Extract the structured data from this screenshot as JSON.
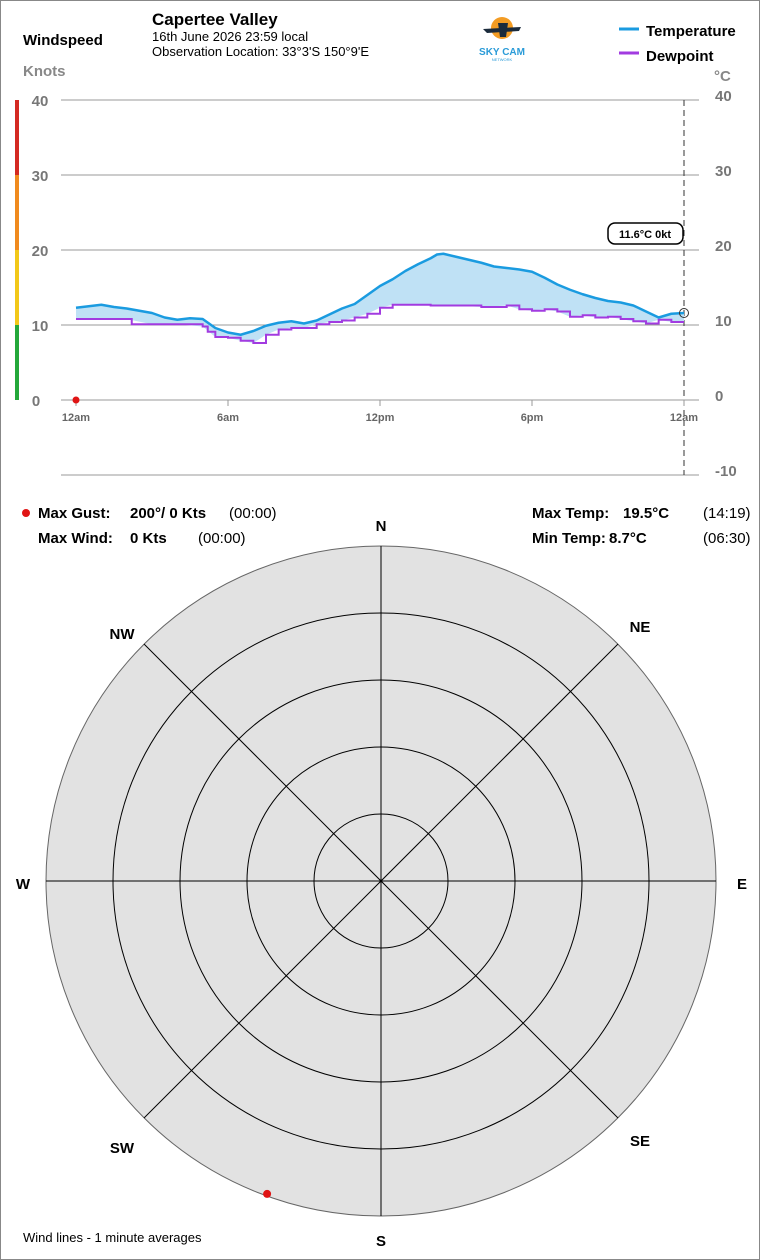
{
  "header": {
    "station_name": "Capertee Valley",
    "datetime": "16th June 2026  23:59 local",
    "location": "Observation Location: 33°3'S 150°9'E",
    "logo_text": "SKY CAM",
    "logo_subtext": "NETWORK"
  },
  "left_axis": {
    "title": "Windspeed",
    "unit": "Knots",
    "ticks": [
      "40",
      "30",
      "20",
      "10",
      "0"
    ]
  },
  "right_axis": {
    "unit": "°C",
    "ticks": [
      "40",
      "30",
      "20",
      "10",
      "0",
      "-10"
    ]
  },
  "legend": {
    "temperature": "Temperature",
    "dewpoint": "Dewpoint"
  },
  "colors": {
    "temperature": "#1a9be0",
    "temperature_fill": "#bfe1f5",
    "dewpoint": "#a23be0",
    "gust_marker": "#e01414",
    "scale_red": "#d42a22",
    "scale_orange": "#f08a1e",
    "scale_yellow": "#f2c819",
    "scale_green": "#24a83a",
    "rose_fill": "#e2e2e2"
  },
  "current_badge": {
    "text": "11.6°C  0kt",
    "temperature_c": 11.6,
    "wind_kt": 0
  },
  "x_ticks": [
    {
      "label": "12am",
      "hour": 0
    },
    {
      "label": "6am",
      "hour": 6
    },
    {
      "label": "12pm",
      "hour": 12
    },
    {
      "label": "6pm",
      "hour": 18
    },
    {
      "label": "12am",
      "hour": 24
    }
  ],
  "chart_data": {
    "type": "line",
    "x_unit": "hour",
    "xlim": [
      0,
      24
    ],
    "ylim_temperature": [
      -10,
      40
    ],
    "ylim_wind": [
      0,
      40
    ],
    "grid": true,
    "legend_position": "top-right",
    "series": [
      {
        "name": "Temperature",
        "x": [
          0,
          0.5,
          1,
          1.5,
          2,
          3,
          3.5,
          4,
          4.5,
          5,
          5.5,
          6,
          6.5,
          7,
          7.5,
          8,
          8.5,
          9,
          9.5,
          10,
          10.5,
          11,
          11.5,
          12,
          12.5,
          13,
          13.5,
          14,
          14.25,
          14.5,
          15,
          15.5,
          16,
          16.5,
          17,
          17.5,
          18,
          18.5,
          19,
          19.5,
          20,
          20.5,
          21,
          21.5,
          22,
          22.5,
          23,
          23.5,
          24
        ],
        "values": [
          12.3,
          12.5,
          12.7,
          12.4,
          12.2,
          11.6,
          11.0,
          10.7,
          10.9,
          10.8,
          9.6,
          9.0,
          8.7,
          9.2,
          9.9,
          10.3,
          10.5,
          10.2,
          10.6,
          11.4,
          12.2,
          12.8,
          14.0,
          15.2,
          16.1,
          17.2,
          18.1,
          18.9,
          19.4,
          19.5,
          19.1,
          18.7,
          18.3,
          17.8,
          17.6,
          17.4,
          17.1,
          16.3,
          15.4,
          14.7,
          14.1,
          13.6,
          13.2,
          13.0,
          12.6,
          11.8,
          11.0,
          11.5,
          11.6
        ]
      },
      {
        "name": "Dewpoint",
        "x": [
          0,
          1,
          2,
          2.2,
          3,
          4,
          5,
          5.2,
          5.5,
          6,
          6.5,
          7,
          7.5,
          8,
          8.5,
          9,
          9.5,
          10,
          10.5,
          11,
          11.5,
          12,
          12.5,
          13,
          14,
          15,
          16,
          17,
          17.5,
          18,
          18.5,
          19,
          19.5,
          20,
          20.5,
          21,
          21.5,
          22,
          22.5,
          23,
          23.5,
          24
        ],
        "values": [
          10.8,
          10.8,
          10.8,
          10.1,
          10.1,
          10.1,
          9.8,
          9.1,
          8.4,
          8.3,
          7.9,
          7.6,
          8.7,
          9.4,
          9.6,
          9.6,
          10.1,
          10.4,
          10.6,
          11.0,
          11.5,
          12.3,
          12.7,
          12.7,
          12.6,
          12.6,
          12.4,
          12.6,
          12.1,
          11.9,
          12.1,
          11.8,
          11.1,
          11.3,
          11.0,
          11.1,
          10.8,
          10.5,
          10.2,
          10.7,
          10.4,
          10.4
        ]
      }
    ]
  },
  "stats": {
    "max_gust_label": "Max Gust:",
    "max_gust_value": "200°/ 0 Kts",
    "max_gust_time": "(00:00)",
    "max_wind_label": "Max Wind:",
    "max_wind_value": "0 Kts",
    "max_wind_time": "(00:00)",
    "max_temp_label": "Max Temp:",
    "max_temp_value": "19.5°C",
    "max_temp_time": "(14:19)",
    "min_temp_label": "Min Temp:",
    "min_temp_value": "8.7°C",
    "min_temp_time": "(06:30)"
  },
  "wind_rose": {
    "directions": [
      "N",
      "NE",
      "E",
      "SE",
      "S",
      "SW",
      "W",
      "NW"
    ],
    "rings": 5,
    "gust_direction_deg": 200,
    "footer": "Wind lines - 1 minute averages"
  }
}
